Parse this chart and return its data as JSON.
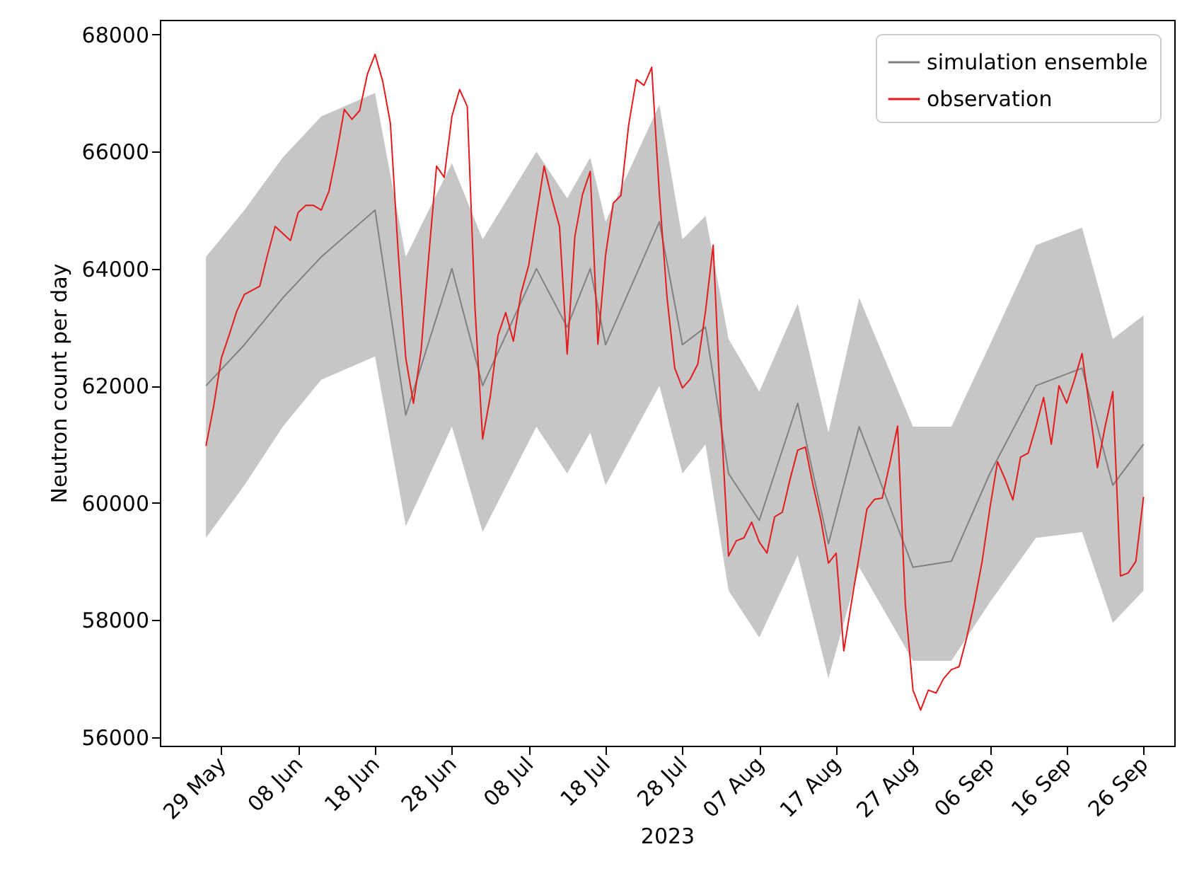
{
  "chart_data": {
    "type": "line",
    "xlabel": "2023",
    "ylabel": "Neutron count per day",
    "xlim": [
      "2023-05-21",
      "2023-09-30"
    ],
    "ylim": [
      55850,
      68250
    ],
    "xticks": [
      {
        "value": "2023-05-29",
        "label": "29 May"
      },
      {
        "value": "2023-06-08",
        "label": "08 Jun"
      },
      {
        "value": "2023-06-18",
        "label": "18 Jun"
      },
      {
        "value": "2023-06-28",
        "label": "28 Jun"
      },
      {
        "value": "2023-07-08",
        "label": "08 Jul"
      },
      {
        "value": "2023-07-18",
        "label": "18 Jul"
      },
      {
        "value": "2023-07-28",
        "label": "28 Jul"
      },
      {
        "value": "2023-08-07",
        "label": "07 Aug"
      },
      {
        "value": "2023-08-17",
        "label": "17 Aug"
      },
      {
        "value": "2023-08-27",
        "label": "27 Aug"
      },
      {
        "value": "2023-09-06",
        "label": "06 Sep"
      },
      {
        "value": "2023-09-16",
        "label": "16 Sep"
      },
      {
        "value": "2023-09-26",
        "label": "26 Sep"
      }
    ],
    "yticks": [
      56000,
      58000,
      60000,
      62000,
      64000,
      66000,
      68000
    ],
    "grid": false,
    "legend": "top right",
    "series": [
      {
        "name": "simulation ensemble",
        "color": "#808080",
        "x": [
          "2023-05-27",
          "2023-06-01",
          "2023-06-06",
          "2023-06-11",
          "2023-06-18",
          "2023-06-22",
          "2023-06-28",
          "2023-07-02",
          "2023-07-09",
          "2023-07-13",
          "2023-07-16",
          "2023-07-18",
          "2023-07-25",
          "2023-07-28",
          "2023-07-31",
          "2023-08-03",
          "2023-08-07",
          "2023-08-12",
          "2023-08-16",
          "2023-08-20",
          "2023-08-27",
          "2023-09-01",
          "2023-09-06",
          "2023-09-12",
          "2023-09-18",
          "2023-09-22",
          "2023-09-26"
        ],
        "values": [
          62000,
          62700,
          63500,
          64200,
          65000,
          61500,
          64000,
          62000,
          64000,
          63000,
          64000,
          62700,
          64800,
          62700,
          63000,
          60500,
          59700,
          61700,
          59300,
          61300,
          58900,
          59000,
          60500,
          62000,
          62300,
          60300,
          61000
        ],
        "lower": [
          59400,
          60300,
          61300,
          62100,
          62500,
          59600,
          61300,
          59500,
          61300,
          60500,
          61200,
          60300,
          62000,
          60500,
          61000,
          58500,
          57700,
          59100,
          57000,
          58900,
          57300,
          57300,
          58300,
          59400,
          59500,
          57950,
          58500
        ],
        "upper": [
          64200,
          65000,
          65900,
          66600,
          67000,
          64200,
          65800,
          64500,
          66000,
          65200,
          65900,
          64800,
          66800,
          64500,
          64900,
          62800,
          61900,
          63400,
          61200,
          63500,
          61300,
          61300,
          62700,
          64400,
          64700,
          62800,
          63200
        ]
      },
      {
        "name": "observation",
        "color": "#e41a1c",
        "x": [
          "2023-05-27",
          "2023-05-28",
          "2023-05-29",
          "2023-05-30",
          "2023-05-31",
          "2023-06-01",
          "2023-06-02",
          "2023-06-03",
          "2023-06-04",
          "2023-06-05",
          "2023-06-06",
          "2023-06-07",
          "2023-06-08",
          "2023-06-09",
          "2023-06-10",
          "2023-06-11",
          "2023-06-12",
          "2023-06-13",
          "2023-06-14",
          "2023-06-15",
          "2023-06-16",
          "2023-06-17",
          "2023-06-18",
          "2023-06-19",
          "2023-06-20",
          "2023-06-21",
          "2023-06-22",
          "2023-06-23",
          "2023-06-24",
          "2023-06-25",
          "2023-06-26",
          "2023-06-27",
          "2023-06-28",
          "2023-06-29",
          "2023-06-30",
          "2023-07-01",
          "2023-07-02",
          "2023-07-03",
          "2023-07-04",
          "2023-07-05",
          "2023-07-06",
          "2023-07-07",
          "2023-07-08",
          "2023-07-09",
          "2023-07-10",
          "2023-07-11",
          "2023-07-12",
          "2023-07-13",
          "2023-07-14",
          "2023-07-15",
          "2023-07-16",
          "2023-07-17",
          "2023-07-18",
          "2023-07-19",
          "2023-07-20",
          "2023-07-21",
          "2023-07-22",
          "2023-07-23",
          "2023-07-24",
          "2023-07-25",
          "2023-07-26",
          "2023-07-27",
          "2023-07-28",
          "2023-07-29",
          "2023-07-30",
          "2023-07-31",
          "2023-08-01",
          "2023-08-02",
          "2023-08-03",
          "2023-08-04",
          "2023-08-05",
          "2023-08-06",
          "2023-08-07",
          "2023-08-08",
          "2023-08-09",
          "2023-08-10",
          "2023-08-11",
          "2023-08-12",
          "2023-08-13",
          "2023-08-14",
          "2023-08-15",
          "2023-08-16",
          "2023-08-17",
          "2023-08-18",
          "2023-08-19",
          "2023-08-20",
          "2023-08-21",
          "2023-08-22",
          "2023-08-23",
          "2023-08-24",
          "2023-08-25",
          "2023-08-26",
          "2023-08-27",
          "2023-08-28",
          "2023-08-29",
          "2023-08-30",
          "2023-08-31",
          "2023-09-01",
          "2023-09-02",
          "2023-09-03",
          "2023-09-04",
          "2023-09-05",
          "2023-09-06",
          "2023-09-07",
          "2023-09-08",
          "2023-09-09",
          "2023-09-10",
          "2023-09-11",
          "2023-09-12",
          "2023-09-13",
          "2023-09-14",
          "2023-09-15",
          "2023-09-16",
          "2023-09-17",
          "2023-09-18",
          "2023-09-19",
          "2023-09-20",
          "2023-09-21",
          "2023-09-22",
          "2023-09-23",
          "2023-09-24",
          "2023-09-25",
          "2023-09-26"
        ],
        "values": [
          60970,
          61650,
          62470,
          62860,
          63270,
          63560,
          63630,
          63700,
          64230,
          64720,
          64600,
          64480,
          64960,
          65080,
          65080,
          65000,
          65320,
          65970,
          66720,
          66550,
          66700,
          67320,
          67660,
          67200,
          66480,
          64300,
          62470,
          61700,
          62610,
          64230,
          65750,
          65560,
          66600,
          67060,
          66770,
          63340,
          61090,
          61820,
          62860,
          63250,
          62760,
          63580,
          64060,
          64900,
          65750,
          65200,
          64720,
          62540,
          64550,
          65270,
          65660,
          62710,
          64230,
          65120,
          65250,
          66450,
          67230,
          67130,
          67440,
          65270,
          63500,
          62300,
          61960,
          62110,
          62370,
          63270,
          64400,
          61500,
          59090,
          59350,
          59400,
          59670,
          59330,
          59140,
          59760,
          59840,
          60400,
          60900,
          60950,
          60300,
          59720,
          58970,
          59140,
          57470,
          58300,
          59090,
          59890,
          60060,
          60080,
          60680,
          61310,
          58270,
          56800,
          56460,
          56800,
          56750,
          57000,
          57150,
          57200,
          57700,
          58300,
          59000,
          59900,
          60700,
          60400,
          60050,
          60780,
          60850,
          61300,
          61800,
          61000,
          62000,
          61700,
          62100,
          62550,
          61600,
          60600,
          61300,
          61900,
          58750,
          58800,
          59000,
          60100
        ]
      }
    ]
  }
}
